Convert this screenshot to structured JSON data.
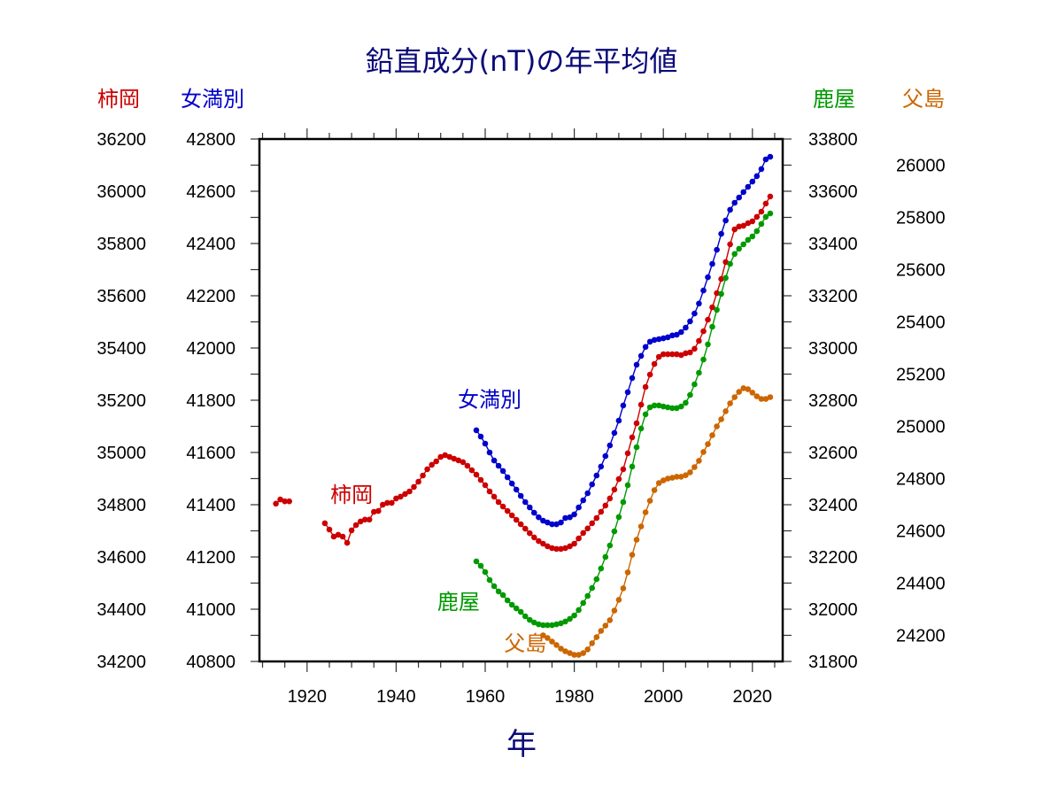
{
  "chart_data": {
    "type": "line",
    "title": "鉛直成分(nT)の年平均値",
    "xlabel": "年",
    "xlim": [
      1909.3,
      2026.8
    ],
    "x_ticks": [
      1920,
      1940,
      1960,
      1980,
      2000,
      2020
    ],
    "x_tick_labels": [
      "1920",
      "1940",
      "1960",
      "1980",
      "2000",
      "2020"
    ],
    "x_minor_step": 5,
    "grid": false,
    "axes": [
      {
        "id": "kakioka",
        "side": "left",
        "label": "柿岡",
        "color": "#cc0000",
        "ylim": [
          34200,
          36200
        ],
        "ticks": [
          36200,
          36000,
          35800,
          35600,
          35400,
          35200,
          35000,
          34800,
          34600,
          34400,
          34200
        ],
        "tick_labels": [
          "36200",
          "36000",
          "35800",
          "35600",
          "35400",
          "35200",
          "35000",
          "34800",
          "34600",
          "34400",
          "34200"
        ]
      },
      {
        "id": "memambetsu",
        "side": "left",
        "label": "女満別",
        "color": "#0000cc",
        "ylim": [
          40800,
          42800
        ],
        "ticks": [
          42800,
          42600,
          42400,
          42200,
          42000,
          41800,
          41600,
          41400,
          41200,
          41000,
          40800
        ],
        "tick_labels": [
          "42800",
          "42600",
          "42400",
          "42200",
          "42000",
          "41800",
          "41600",
          "41400",
          "41200",
          "41000",
          "40800"
        ]
      },
      {
        "id": "kanoya",
        "side": "right",
        "label": "鹿屋",
        "color": "#009900",
        "ylim": [
          31800,
          33800
        ],
        "ticks": [
          33800,
          33600,
          33400,
          33200,
          33000,
          32800,
          32600,
          32400,
          32200,
          32000,
          31800
        ],
        "tick_labels": [
          "33800",
          "33600",
          "33400",
          "33200",
          "33000",
          "32800",
          "32600",
          "32400",
          "32200",
          "32000",
          "31800"
        ]
      },
      {
        "id": "chichijima",
        "side": "right",
        "label": "父島",
        "color": "#cc6600",
        "ylim": [
          24100,
          26100
        ],
        "ticks": [
          26000,
          25800,
          25600,
          25400,
          25200,
          25000,
          24800,
          24600,
          24400,
          24200
        ],
        "tick_labels": [
          "26000",
          "25800",
          "25600",
          "25400",
          "25200",
          "25000",
          "24800",
          "24600",
          "24400",
          "24200"
        ]
      }
    ],
    "series": [
      {
        "name": "柿岡",
        "axis": "kakioka",
        "color": "#cc0000",
        "label_year": 1930,
        "label_value": 34810,
        "segments": [
          {
            "x": [
              1913,
              1914,
              1915,
              1916
            ],
            "y": [
              34804,
              34820,
              34813,
              34813
            ]
          },
          {
            "x": [
              1924,
              1925,
              1926,
              1927,
              1928,
              1929,
              1930,
              1931,
              1932,
              1933,
              1934,
              1935,
              1936,
              1937,
              1938,
              1939,
              1940,
              1941,
              1942,
              1943,
              1944,
              1945,
              1946,
              1947,
              1948,
              1949,
              1950,
              1951,
              1952,
              1953,
              1954,
              1955,
              1956,
              1957,
              1958,
              1959,
              1960,
              1961,
              1962,
              1963,
              1964,
              1965,
              1966,
              1967,
              1968,
              1969,
              1970,
              1971,
              1972,
              1973,
              1974,
              1975,
              1976,
              1977,
              1978,
              1979,
              1980,
              1981,
              1982,
              1983,
              1984,
              1985,
              1986,
              1987,
              1988,
              1989,
              1990,
              1991,
              1992,
              1993,
              1994,
              1995,
              1996,
              1997,
              1998,
              1999,
              2000,
              2001,
              2002,
              2003,
              2004,
              2005,
              2006,
              2007,
              2008,
              2009,
              2010,
              2011,
              2012,
              2013,
              2014,
              2015,
              2016,
              2017,
              2018,
              2019,
              2020,
              2021,
              2022,
              2023,
              2024
            ],
            "y": [
              34729,
              34705,
              34678,
              34685,
              34678,
              34654,
              34702,
              34722,
              34736,
              34743,
              34743,
              34773,
              34776,
              34800,
              34807,
              34807,
              34824,
              34831,
              34841,
              34851,
              34868,
              34888,
              34912,
              34936,
              34953,
              34966,
              34983,
              34990,
              34983,
              34976,
              34970,
              34963,
              34949,
              34932,
              34915,
              34895,
              34875,
              34851,
              34831,
              34810,
              34793,
              34776,
              34759,
              34742,
              34725,
              34708,
              34691,
              34675,
              34661,
              34651,
              34641,
              34634,
              34631,
              34631,
              34634,
              34641,
              34651,
              34671,
              34692,
              34709,
              34729,
              34749,
              34773,
              34797,
              34824,
              34858,
              34898,
              34936,
              34997,
              35058,
              35112,
              35183,
              35251,
              35298,
              35339,
              35366,
              35376,
              35376,
              35376,
              35376,
              35373,
              35380,
              35383,
              35397,
              35427,
              35464,
              35508,
              35556,
              35610,
              35664,
              35729,
              35797,
              35854,
              35865,
              35868,
              35878,
              35885,
              35902,
              35922,
              35953,
              35980
            ]
          }
        ]
      },
      {
        "name": "女満別",
        "axis": "memambetsu",
        "color": "#0000cc",
        "label_year": 1961,
        "label_value": 41775,
        "segments": [
          {
            "x": [
              1958,
              1959,
              1960,
              1961,
              1962,
              1963,
              1964,
              1965,
              1966,
              1967,
              1968,
              1969,
              1970,
              1971,
              1972,
              1973,
              1974,
              1975,
              1976,
              1977,
              1978,
              1979,
              1980,
              1981,
              1982,
              1983,
              1984,
              1985,
              1986,
              1987,
              1988,
              1989,
              1990,
              1991,
              1992,
              1993,
              1994,
              1995,
              1996,
              1997,
              1998,
              1999,
              2000,
              2001,
              2002,
              2003,
              2004,
              2005,
              2006,
              2007,
              2008,
              2009,
              2010,
              2011,
              2012,
              2013,
              2014,
              2015,
              2016,
              2017,
              2018,
              2019,
              2020,
              2021,
              2022,
              2023,
              2024
            ],
            "y": [
              41685,
              41661,
              41634,
              41600,
              41569,
              41549,
              41529,
              41505,
              41481,
              41458,
              41434,
              41410,
              41390,
              41369,
              41352,
              41339,
              41332,
              41325,
              41325,
              41332,
              41349,
              41352,
              41363,
              41390,
              41417,
              41444,
              41478,
              41512,
              41546,
              41586,
              41627,
              41675,
              41722,
              41780,
              41831,
              41885,
              41936,
              41970,
              42004,
              42024,
              42031,
              42034,
              42037,
              42041,
              42048,
              42051,
              42061,
              42078,
              42102,
              42132,
              42170,
              42220,
              42271,
              42322,
              42376,
              42437,
              42488,
              42529,
              42556,
              42576,
              42597,
              42617,
              42637,
              42658,
              42685,
              42722,
              42732
            ]
          }
        ]
      },
      {
        "name": "鹿屋",
        "axis": "kanoya",
        "color": "#009900",
        "label_year": 1954,
        "label_value": 32000,
        "segments": [
          {
            "x": [
              1958,
              1959,
              1960,
              1961,
              1962,
              1963,
              1964,
              1965,
              1966,
              1967,
              1968,
              1969,
              1970,
              1971,
              1972,
              1973,
              1974,
              1975,
              1976,
              1977,
              1978,
              1979,
              1980,
              1981,
              1982,
              1983,
              1984,
              1985,
              1986,
              1987,
              1988,
              1989,
              1990,
              1991,
              1992,
              1993,
              1994,
              1995,
              1996,
              1997,
              1998,
              1999,
              2000,
              2001,
              2002,
              2003,
              2004,
              2005,
              2006,
              2007,
              2008,
              2009,
              2010,
              2011,
              2012,
              2013,
              2014,
              2015,
              2016,
              2017,
              2018,
              2019,
              2020,
              2021,
              2022,
              2023,
              2024
            ],
            "y": [
              32183,
              32166,
              32142,
              32112,
              32088,
              32068,
              32054,
              32034,
              32017,
              32003,
              31990,
              31973,
              31959,
              31949,
              31942,
              31939,
              31939,
              31939,
              31942,
              31946,
              31953,
              31963,
              31976,
              31997,
              32024,
              32051,
              32081,
              32115,
              32156,
              32200,
              32244,
              32298,
              32353,
              32410,
              32475,
              32546,
              32620,
              32692,
              32746,
              32773,
              32780,
              32780,
              32776,
              32773,
              32770,
              32770,
              32776,
              32790,
              32820,
              32861,
              32905,
              32956,
              33014,
              33081,
              33146,
              33207,
              33268,
              33322,
              33360,
              33380,
              33397,
              33414,
              33427,
              33447,
              33475,
              33502,
              33515
            ]
          }
        ]
      },
      {
        "name": "父島",
        "axis": "chichijima",
        "color": "#cc6600",
        "label_year": 1969,
        "label_value": 24140,
        "segments": [
          {
            "x": [
              1973,
              1974,
              1975,
              1976,
              1977,
              1978,
              1979,
              1980,
              1981,
              1982,
              1983,
              1984,
              1985,
              1986,
              1987,
              1988,
              1989,
              1990,
              1991,
              1992,
              1993,
              1994,
              1995,
              1996,
              1997,
              1998,
              1999,
              2000,
              2001,
              2002,
              2003,
              2004,
              2005,
              2006,
              2007,
              2008,
              2009,
              2010,
              2011,
              2012,
              2013,
              2014,
              2015,
              2016,
              2017,
              2018,
              2019,
              2020,
              2021,
              2022,
              2023,
              2024
            ],
            "y": [
              24200,
              24190,
              24176,
              24163,
              24149,
              24139,
              24132,
              24125,
              24125,
              24132,
              24146,
              24170,
              24193,
              24217,
              24237,
              24258,
              24295,
              24336,
              24380,
              24441,
              24508,
              24566,
              24617,
              24671,
              24715,
              24756,
              24783,
              24793,
              24800,
              24803,
              24807,
              24807,
              24813,
              24824,
              24844,
              24868,
              24902,
              24932,
              24966,
              25000,
              25027,
              25058,
              25088,
              25112,
              25132,
              25146,
              25142,
              25129,
              25115,
              25105,
              25105,
              25112
            ]
          }
        ]
      }
    ]
  }
}
